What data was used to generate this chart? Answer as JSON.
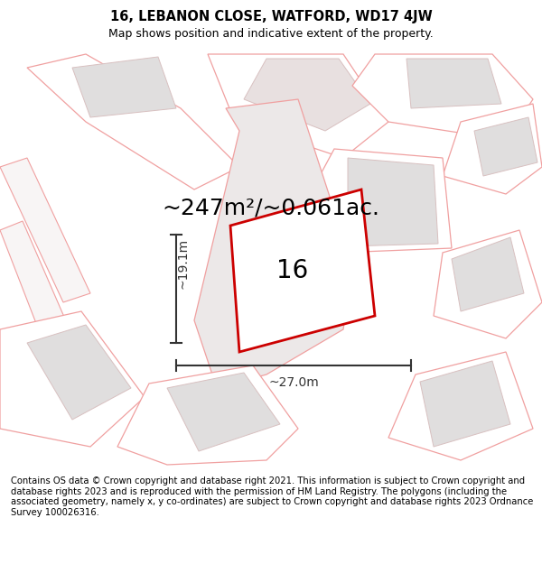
{
  "title": "16, LEBANON CLOSE, WATFORD, WD17 4JW",
  "subtitle": "Map shows position and indicative extent of the property.",
  "footer": "Contains OS data © Crown copyright and database right 2021. This information is subject to Crown copyright and database rights 2023 and is reproduced with the permission of HM Land Registry. The polygons (including the associated geometry, namely x, y co-ordinates) are subject to Crown copyright and database rights 2023 Ordnance Survey 100026316.",
  "area_text": "~247m²/~0.061ac.",
  "width_label": "~27.0m",
  "height_label": "~19.1m",
  "number_label": "16",
  "bg_color": "#ffffff",
  "map_bg": "#ffffff",
  "plot_outline_color": "#f0a0a0",
  "subject_outline_color": "#cc0000",
  "subject_fill_color": "#ffffff",
  "building_fill_color": "#e0dede",
  "building_outline_color": "#d8c0c0",
  "dim_line_color": "#333333",
  "title_fontsize": 10.5,
  "subtitle_fontsize": 9,
  "footer_fontsize": 7.2,
  "area_fontsize": 18,
  "label_fontsize": 10,
  "number_fontsize": 20
}
